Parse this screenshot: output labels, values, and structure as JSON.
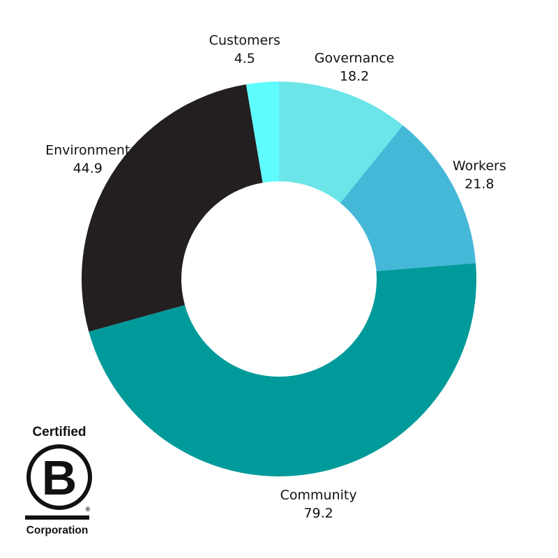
{
  "chart_data": {
    "type": "donut",
    "title": "",
    "start_angle_deg": 0,
    "direction": "clockwise",
    "categories": [
      "Governance",
      "Workers",
      "Community",
      "Environment",
      "Customers"
    ],
    "values": [
      18.2,
      21.8,
      79.2,
      44.9,
      4.5
    ],
    "value_labels": [
      "18.2",
      "21.8",
      "79.2",
      "44.9",
      "4.5"
    ],
    "colors": [
      "#6ce5e8",
      "#45b8d8",
      "#009a9a",
      "#231f20",
      "#5ffcff"
    ],
    "legend": "none",
    "labels_position": "outside"
  },
  "logo": {
    "name": "b-corp-logo",
    "top_text": "Certified",
    "letter": "B",
    "bottom_text": "Corporation",
    "registered_mark": "®"
  }
}
